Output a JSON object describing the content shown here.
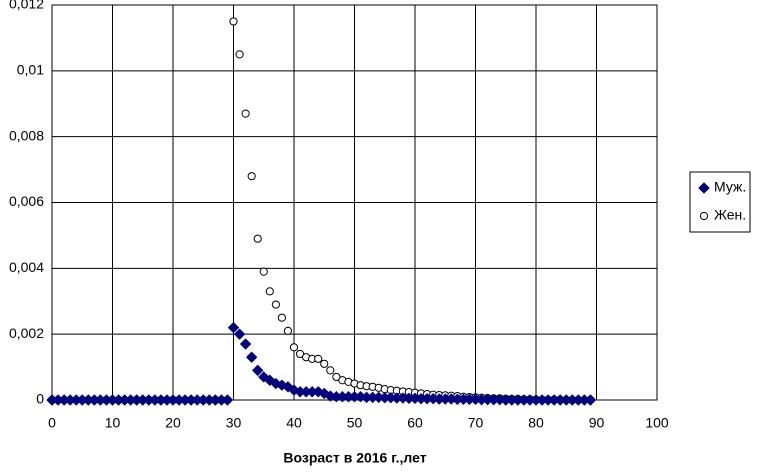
{
  "chart_data": {
    "type": "scatter",
    "x_label": "Возраст в 2016 г.,лет",
    "x": [
      0,
      1,
      2,
      3,
      4,
      5,
      6,
      7,
      8,
      9,
      10,
      11,
      12,
      13,
      14,
      15,
      16,
      17,
      18,
      19,
      20,
      21,
      22,
      23,
      24,
      25,
      26,
      27,
      28,
      29,
      30,
      31,
      32,
      33,
      34,
      35,
      36,
      37,
      38,
      39,
      40,
      41,
      42,
      43,
      44,
      45,
      46,
      47,
      48,
      49,
      50,
      51,
      52,
      53,
      54,
      55,
      56,
      57,
      58,
      59,
      60,
      61,
      62,
      63,
      64,
      65,
      66,
      67,
      68,
      69,
      70,
      71,
      72,
      73,
      74,
      75,
      76,
      77,
      78,
      79,
      80,
      81,
      82,
      83,
      84,
      85,
      86,
      87,
      88,
      89
    ],
    "series": [
      {
        "name": "Жен.",
        "color": "#ffffff",
        "marker": "circle",
        "values": [
          0,
          0,
          0,
          0,
          0,
          0,
          0,
          0,
          0,
          0,
          0,
          0,
          0,
          0,
          0,
          0,
          0,
          0,
          0,
          0,
          0,
          0,
          0,
          0,
          0,
          0,
          0,
          0,
          0,
          0,
          0.0115,
          0.0105,
          0.0087,
          0.0068,
          0.0049,
          0.0039,
          0.0033,
          0.0029,
          0.0025,
          0.0021,
          0.0016,
          0.0014,
          0.0013,
          0.00125,
          0.00125,
          0.0011,
          0.0009,
          0.0007,
          0.0006,
          0.00055,
          0.0005,
          0.00045,
          0.00042,
          0.0004,
          0.00037,
          0.00033,
          0.0003,
          0.00028,
          0.00026,
          0.00024,
          0.00022,
          0.0002,
          0.00018,
          0.00016,
          0.00015,
          0.00014,
          0.00013,
          0.00012,
          0.0001,
          9e-05,
          8e-05,
          7e-05,
          6e-05,
          5e-05,
          5e-05,
          4e-05,
          3e-05,
          3e-05,
          2e-05,
          2e-05,
          1e-05,
          1e-05,
          1e-05,
          1e-05,
          1e-05,
          0,
          0,
          0,
          0,
          0
        ]
      },
      {
        "name": "Муж.",
        "color": "#000080",
        "marker": "diamond",
        "values": [
          0,
          0,
          0,
          0,
          0,
          0,
          0,
          0,
          0,
          0,
          0,
          0,
          0,
          0,
          0,
          0,
          0,
          0,
          0,
          0,
          0,
          0,
          0,
          0,
          0,
          0,
          0,
          0,
          0,
          0,
          0.0022,
          0.002,
          0.0017,
          0.0013,
          0.0009,
          0.0007,
          0.0006,
          0.0005,
          0.00045,
          0.0004,
          0.0003,
          0.00025,
          0.00025,
          0.00025,
          0.00025,
          0.0002,
          0.00012,
          0.0001,
          0.0001,
          0.0001,
          0.0001,
          0.0001,
          8e-05,
          8e-05,
          8e-05,
          7e-05,
          7e-05,
          6e-05,
          6e-05,
          5e-05,
          5e-05,
          4e-05,
          4e-05,
          4e-05,
          3e-05,
          3e-05,
          3e-05,
          2e-05,
          2e-05,
          2e-05,
          2e-05,
          1e-05,
          1e-05,
          1e-05,
          1e-05,
          0,
          0,
          0,
          0,
          0,
          0,
          0,
          0,
          0,
          0,
          0,
          0,
          0,
          0,
          0
        ]
      }
    ],
    "xlim": [
      0,
      100
    ],
    "xticks": [
      0,
      10,
      20,
      30,
      40,
      50,
      60,
      70,
      80,
      90,
      100
    ],
    "ylim": [
      0,
      0.012
    ],
    "yticks": [
      0,
      {
        "value": 0.002,
        "label": "0,002"
      },
      {
        "value": 0.004,
        "label": "0,004"
      },
      {
        "value": 0.006,
        "label": "0,006"
      },
      {
        "value": 0.008,
        "label": "0,008"
      },
      {
        "value": 0.01,
        "label": "0,01"
      },
      {
        "value": 0.012,
        "label": "0,012"
      }
    ],
    "grid": true,
    "legend": "right"
  }
}
